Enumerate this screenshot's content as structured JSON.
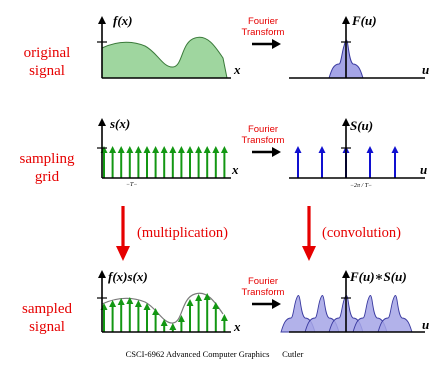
{
  "rows": [
    {
      "label_line1": "original",
      "label_line2": "signal"
    },
    {
      "label_line1": "sampling",
      "label_line2": "grid"
    },
    {
      "label_line1": "sampled",
      "label_line2": "signal"
    }
  ],
  "transform": {
    "line1": "Fourier",
    "line2": "Transform"
  },
  "axes": {
    "f_x": "f(x)",
    "F_u": "F(u)",
    "s_x": "s(x)",
    "S_u": "S(u)",
    "fs_x": "f(x)s(x)",
    "FS_u": "F(u)∗S(u)",
    "x": "x",
    "u": "u",
    "grid_T": "−T−",
    "grid_2pi": "−2π / T−"
  },
  "operations": {
    "multiplication": "(multiplication)",
    "convolution": "(convolution)"
  },
  "footer": {
    "course": "CSCI-6962 Advanced Computer Graphics",
    "author": "Cutler"
  },
  "colors": {
    "label_red": "#e60000",
    "signal_green": "#9fd69f",
    "spectrum_blue": "#a5a5e6",
    "grid_green": "#139713",
    "grid_blue": "#1010d0"
  }
}
